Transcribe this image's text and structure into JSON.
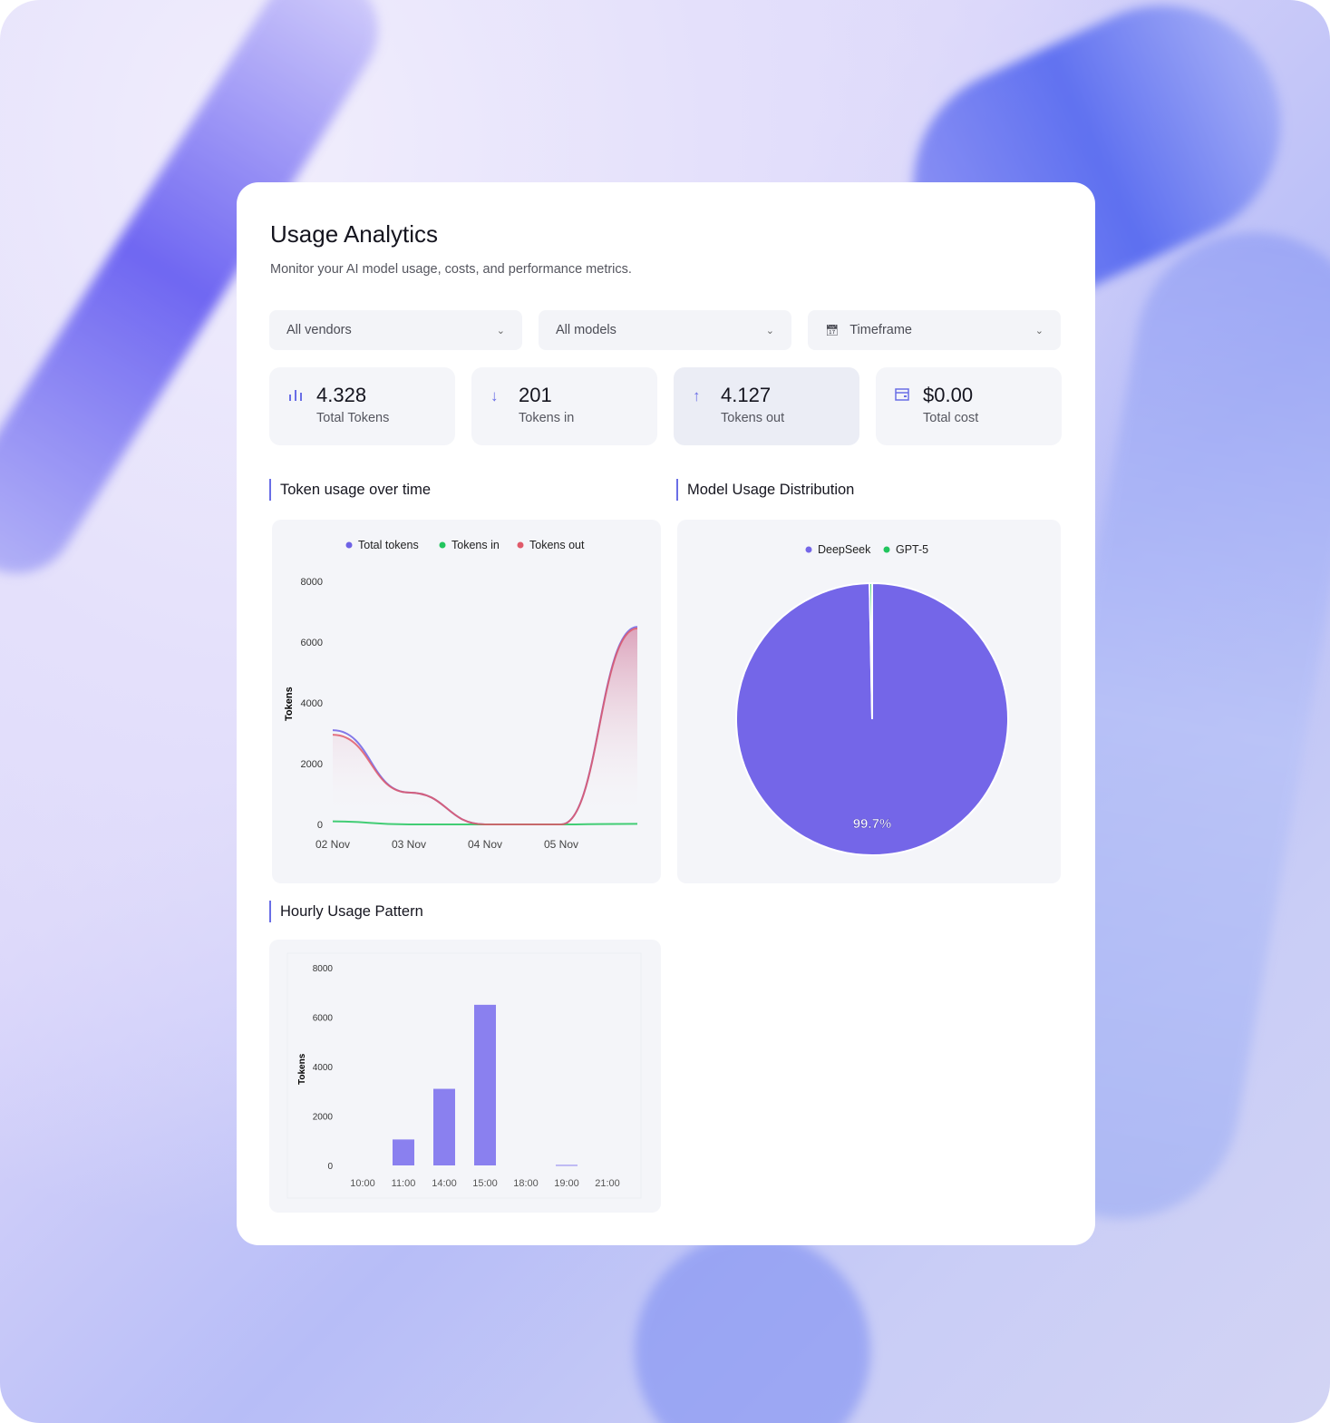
{
  "header": {
    "title": "Usage Analytics",
    "subtitle": "Monitor your AI model usage, costs, and performance metrics."
  },
  "filters": {
    "vendor": "All vendors",
    "model": "All models",
    "timeframe": "Timeframe"
  },
  "stats": [
    {
      "icon": "bar-chart-icon",
      "value": "4.328",
      "label": "Total Tokens"
    },
    {
      "icon": "arrow-down-icon",
      "value": "201",
      "label": "Tokens in"
    },
    {
      "icon": "arrow-up-icon",
      "value": "4.127",
      "label": "Tokens out"
    },
    {
      "icon": "wallet-icon",
      "value": "$0.00",
      "label": "Total cost"
    }
  ],
  "sections": {
    "token_usage": "Token usage over time",
    "model_dist": "Model Usage Distribution",
    "hourly": "Hourly Usage Pattern"
  },
  "chart_data": [
    {
      "type": "area",
      "ylabel": "Tokens",
      "ylim": [
        0,
        8000
      ],
      "yticks": [
        "0",
        "2000",
        "4000",
        "6000",
        "8000"
      ],
      "categories": [
        "02 Nov",
        "03 Nov",
        "04 Nov",
        "05 Nov",
        ""
      ],
      "legend": "top",
      "series": [
        {
          "name": "Total tokens",
          "color": "#6e62e5",
          "values": [
            3100,
            1050,
            0,
            0,
            6500
          ]
        },
        {
          "name": "Tokens in",
          "color": "#22c55e",
          "values": [
            100,
            0,
            0,
            0,
            20
          ]
        },
        {
          "name": "Tokens out",
          "color": "#e05a6a",
          "values": [
            2950,
            1050,
            0,
            0,
            6450
          ]
        }
      ]
    },
    {
      "type": "pie",
      "legend": "top",
      "slices": [
        {
          "name": "DeepSeek",
          "value": 99.7,
          "color": "#7466e8",
          "label": "99.7%"
        },
        {
          "name": "GPT-5",
          "value": 0.3,
          "color": "#22c55e"
        }
      ]
    },
    {
      "type": "bar",
      "ylabel": "Tokens",
      "ylim": [
        0,
        8000
      ],
      "yticks": [
        "0",
        "2000",
        "4000",
        "6000",
        "8000"
      ],
      "categories": [
        "10:00",
        "11:00",
        "14:00",
        "15:00",
        "18:00",
        "19:00",
        "21:00"
      ],
      "values": [
        0,
        1050,
        3100,
        6500,
        0,
        20,
        0
      ],
      "color": "#8a80ef"
    }
  ]
}
